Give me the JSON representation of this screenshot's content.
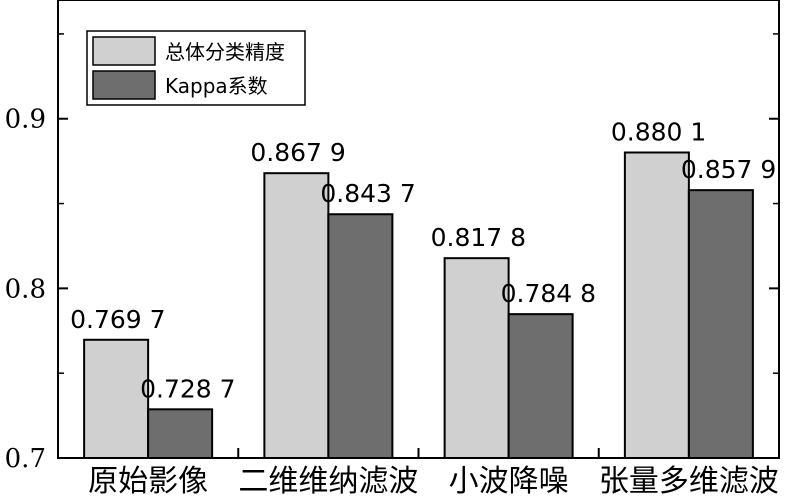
{
  "chart_data": {
    "type": "bar",
    "categories": [
      "原始影像",
      "二维维纳滤波",
      "小波降噪",
      "张量多维滤波"
    ],
    "series": [
      {
        "name": "总体分类精度",
        "values": [
          0.7697,
          0.8679,
          0.8178,
          0.8801
        ],
        "labels": [
          "0.769 7",
          "0.867 9",
          "0.817 8",
          "0.880 1"
        ],
        "color": "#d0d0d0"
      },
      {
        "name": "Kappa系数",
        "values": [
          0.7287,
          0.8437,
          0.7848,
          0.8579
        ],
        "labels": [
          "0.728 7",
          "0.843 7",
          "0.784 8",
          "0.857 9"
        ],
        "color": "#6e6e6e"
      }
    ],
    "ylim": [
      0.7,
      0.97
    ],
    "yticks": [
      0.7,
      0.8,
      0.9
    ],
    "ytick_labels": [
      "0.7",
      "0.8",
      "0.9"
    ],
    "xlabel": "",
    "ylabel": "",
    "title": "",
    "legend_position": "top-left",
    "grid": false
  }
}
